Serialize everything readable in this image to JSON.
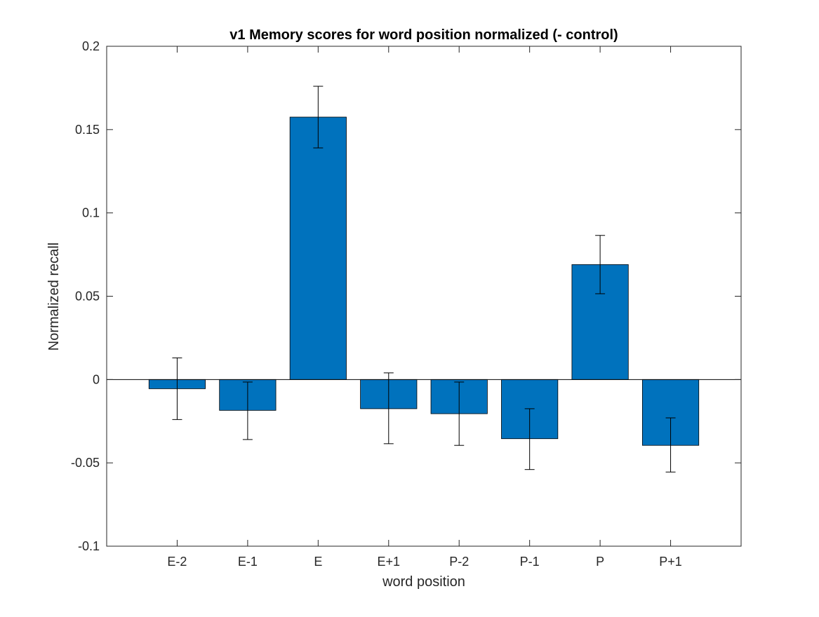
{
  "chart_data": {
    "type": "bar",
    "title": "v1 Memory scores for word position normalized (- control)",
    "xlabel": "word position",
    "ylabel": "Normalized recall",
    "categories": [
      "E-2",
      "E-1",
      "E",
      "E+1",
      "P-2",
      "P-1",
      "P",
      "P+1"
    ],
    "values": [
      -0.0055,
      -0.0185,
      0.1575,
      -0.0175,
      -0.0205,
      -0.0355,
      0.069,
      -0.0395
    ],
    "error_low": [
      -0.024,
      -0.036,
      0.139,
      -0.0385,
      -0.0395,
      -0.054,
      0.0515,
      -0.0555
    ],
    "error_high": [
      0.013,
      -0.0015,
      0.176,
      0.004,
      -0.0015,
      -0.0175,
      0.0865,
      -0.023
    ],
    "ylim": [
      -0.1,
      0.2
    ],
    "xlim": [
      0,
      9
    ],
    "yticks": [
      -0.1,
      -0.05,
      0,
      0.05,
      0.1,
      0.15,
      0.2
    ],
    "ytick_labels": [
      "-0.1",
      "-0.05",
      "0",
      "0.05",
      "0.1",
      "0.15",
      "0.2"
    ],
    "bar_color": "#0072BD",
    "grid": false,
    "legend": "none"
  }
}
